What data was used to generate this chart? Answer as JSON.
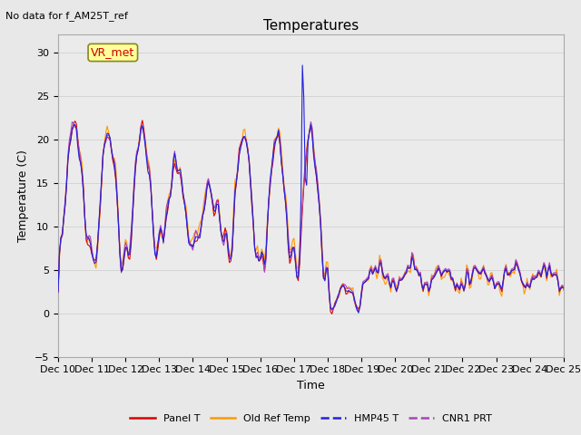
{
  "title": "Temperatures",
  "subtitle": "No data for f_AM25T_ref",
  "xlabel": "Time",
  "ylabel": "Temperature (C)",
  "ylim": [
    -5,
    32
  ],
  "xlim": [
    0,
    360
  ],
  "annotation": "VR_met",
  "background_color": "#e8e8e8",
  "plot_bg_color": "#ebebeb",
  "legend_labels": [
    "Panel T",
    "Old Ref Temp",
    "HMP45 T",
    "CNR1 PRT"
  ],
  "legend_colors": [
    "#dd0000",
    "#ff9900",
    "#2222dd",
    "#aa44bb"
  ],
  "legend_linestyles": [
    "-",
    "-",
    "-",
    "-"
  ],
  "xtick_labels": [
    "Dec 10",
    "Dec 11",
    "Dec 12",
    "Dec 13",
    "Dec 14",
    "Dec 15",
    "Dec 16",
    "Dec 17",
    "Dec 18",
    "Dec 19",
    "Dec 20",
    "Dec 21",
    "Dec 22",
    "Dec 23",
    "Dec 24",
    "Dec 25"
  ],
  "xtick_positions": [
    0,
    24,
    48,
    72,
    96,
    120,
    144,
    168,
    192,
    216,
    240,
    264,
    288,
    312,
    336,
    360
  ],
  "ytick_positions": [
    -5,
    0,
    5,
    10,
    15,
    20,
    25,
    30
  ],
  "figsize": [
    6.4,
    4.8
  ],
  "dpi": 100
}
